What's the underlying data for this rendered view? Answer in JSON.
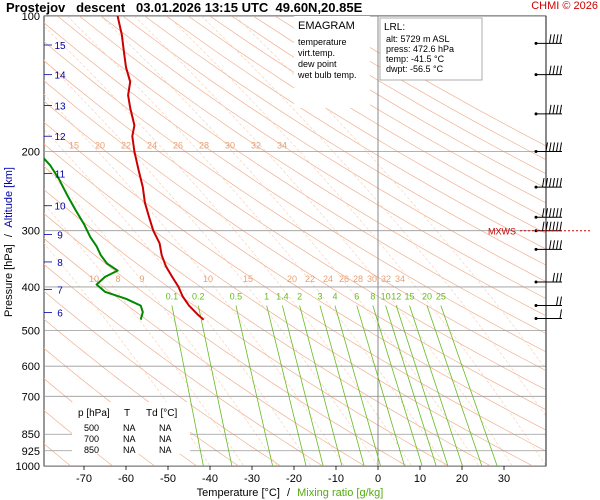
{
  "page": {
    "title": "Prostejov   descent   03.01.2026 13:15 UTC  49.60N,20.85E",
    "copyright": "CHMI © 2026"
  },
  "legend": {
    "title": "EMAGRAM",
    "items": [
      {
        "label": "temperature",
        "color": "#cc0000"
      },
      {
        "label": "virt.temp.",
        "color": "#cc0000"
      },
      {
        "label": "dew point",
        "color": "#008800"
      },
      {
        "label": "wet bulb temp.",
        "color": "#3366cc"
      }
    ]
  },
  "lrl": {
    "title": "LRL:",
    "lines": [
      {
        "text": "alt: 5729 m ASL",
        "color": "#0000cc"
      },
      {
        "text": "press: 472.6 hPa",
        "color": "#000000"
      },
      {
        "text": "temp: -41.5 °C",
        "color": "#cc0000"
      },
      {
        "text": "dwpt: -56.5 °C",
        "color": "#008800"
      }
    ]
  },
  "mxws_label": "MXWS",
  "table": {
    "headers": [
      "p [hPa]",
      "T",
      "Td [°C]"
    ],
    "rows": [
      [
        "500",
        "NA",
        "NA"
      ],
      [
        "700",
        "NA",
        "NA"
      ],
      [
        "850",
        "NA",
        "NA"
      ]
    ]
  },
  "axes": {
    "ylabel_pressure": "Pressure [hPa]",
    "ylabel_sep": "/",
    "ylabel_altitude": "Altitude [km]",
    "xlabel_temp": "Temperature [°C]",
    "xlabel_sep": "/",
    "xlabel_mix": "Mixing ratio [g/kg]"
  },
  "colors": {
    "temperature": "#cc0000",
    "dewpoint": "#008800",
    "altitude": "#0000aa",
    "isobar": "#999999",
    "dry_adiabat": "#f0b090",
    "moist_adiabat": "#f8cdb0",
    "mixing_ratio": "#66bb22",
    "wind": "#000000",
    "mxws": "#cc0000"
  },
  "chart_data": {
    "type": "line",
    "title": "EMAGRAM",
    "xlabel": "Temperature [°C] / Mixing ratio [g/kg]",
    "ylabel": "Pressure [hPa] / Altitude [km]",
    "xlim": [
      -80,
      40
    ],
    "ylim_pressure": [
      1000,
      100
    ],
    "y_scale": "log",
    "x_ticks": [
      -70,
      -60,
      -50,
      -40,
      -30,
      -20,
      -10,
      0,
      10,
      20,
      30
    ],
    "x_tick_labels": [
      "-70",
      "-60",
      "-50",
      "-40",
      "-30",
      "-20",
      "-10",
      "0",
      "10",
      "20",
      "30"
    ],
    "pressure_ticks": [
      100,
      200,
      300,
      400,
      500,
      600,
      700,
      850,
      925,
      1000
    ],
    "pressure_tick_labels": [
      "100",
      "200",
      "300",
      "400",
      "500",
      "600",
      "700",
      "850",
      "925",
      "1000"
    ],
    "altitude_ticks": [
      {
        "label": "6",
        "p": 456
      },
      {
        "label": "7",
        "p": 405
      },
      {
        "label": "8",
        "p": 352
      },
      {
        "label": "9",
        "p": 306
      },
      {
        "label": "10",
        "p": 264
      },
      {
        "label": "11",
        "p": 224
      },
      {
        "label": "12",
        "p": 185
      },
      {
        "label": "13",
        "p": 158
      },
      {
        "label": "14",
        "p": 135
      },
      {
        "label": "15",
        "p": 116
      }
    ],
    "grid": true,
    "series": [
      {
        "name": "temperature",
        "points": [
          {
            "p": 473,
            "t": -41.5
          },
          {
            "p": 460,
            "t": -43
          },
          {
            "p": 440,
            "t": -45
          },
          {
            "p": 420,
            "t": -46.5
          },
          {
            "p": 400,
            "t": -47.5
          },
          {
            "p": 380,
            "t": -49
          },
          {
            "p": 360,
            "t": -50.5
          },
          {
            "p": 340,
            "t": -51.5
          },
          {
            "p": 320,
            "t": -52
          },
          {
            "p": 300,
            "t": -53.5
          },
          {
            "p": 280,
            "t": -54.5
          },
          {
            "p": 260,
            "t": -55.5
          },
          {
            "p": 240,
            "t": -56
          },
          {
            "p": 220,
            "t": -57
          },
          {
            "p": 200,
            "t": -58
          },
          {
            "p": 185,
            "t": -58.5
          },
          {
            "p": 175,
            "t": -58
          },
          {
            "p": 160,
            "t": -59
          },
          {
            "p": 150,
            "t": -59.5
          },
          {
            "p": 140,
            "t": -59
          },
          {
            "p": 130,
            "t": -60
          },
          {
            "p": 120,
            "t": -60.5
          },
          {
            "p": 110,
            "t": -61
          },
          {
            "p": 100,
            "t": -62
          }
        ]
      },
      {
        "name": "dew point",
        "points": [
          {
            "p": 473,
            "t": -56.5
          },
          {
            "p": 455,
            "t": -56
          },
          {
            "p": 440,
            "t": -56.5
          },
          {
            "p": 425,
            "t": -60
          },
          {
            "p": 410,
            "t": -65
          },
          {
            "p": 395,
            "t": -67
          },
          {
            "p": 380,
            "t": -65
          },
          {
            "p": 368,
            "t": -62
          },
          {
            "p": 355,
            "t": -64.5
          },
          {
            "p": 340,
            "t": -66
          },
          {
            "p": 325,
            "t": -67
          },
          {
            "p": 310,
            "t": -68.5
          },
          {
            "p": 290,
            "t": -70
          },
          {
            "p": 270,
            "t": -72
          },
          {
            "p": 250,
            "t": -74
          },
          {
            "p": 230,
            "t": -76
          },
          {
            "p": 215,
            "t": -78
          },
          {
            "p": 205,
            "t": -80
          }
        ]
      }
    ],
    "mixing_ratio_labels": [
      "0.1",
      "0.2",
      "0.5",
      "1",
      "1.4",
      "2",
      "3",
      "4",
      "6",
      "8",
      "10",
      "12",
      "15",
      "20",
      "25"
    ],
    "mixing_ratio_values": [
      0.1,
      0.2,
      0.5,
      1,
      1.4,
      2,
      3,
      4,
      6,
      8,
      10,
      12,
      15,
      20,
      25
    ],
    "dry_adiabat_labels_200": [
      "15",
      "20",
      "22",
      "24",
      "26",
      "28",
      "30",
      "32",
      "34"
    ],
    "dry_adiabat_labels_400": [
      "10",
      "8",
      "9",
      "10",
      "15",
      "20",
      "22",
      "24",
      "26",
      "28",
      "30",
      "32",
      "34"
    ],
    "wind_levels": [
      {
        "p": 115,
        "dir": 270,
        "speed": 40
      },
      {
        "p": 135,
        "dir": 270,
        "speed": 40
      },
      {
        "p": 165,
        "dir": 270,
        "speed": 40
      },
      {
        "p": 200,
        "dir": 270,
        "speed": 45
      },
      {
        "p": 240,
        "dir": 270,
        "speed": 55
      },
      {
        "p": 280,
        "dir": 270,
        "speed": 55
      },
      {
        "p": 300,
        "dir": 270,
        "speed": 55
      },
      {
        "p": 330,
        "dir": 270,
        "speed": 40
      },
      {
        "p": 390,
        "dir": 270,
        "speed": 30
      },
      {
        "p": 440,
        "dir": 300,
        "speed": 15
      },
      {
        "p": 470,
        "dir": 300,
        "speed": 10
      }
    ],
    "mxws_p": 300
  }
}
